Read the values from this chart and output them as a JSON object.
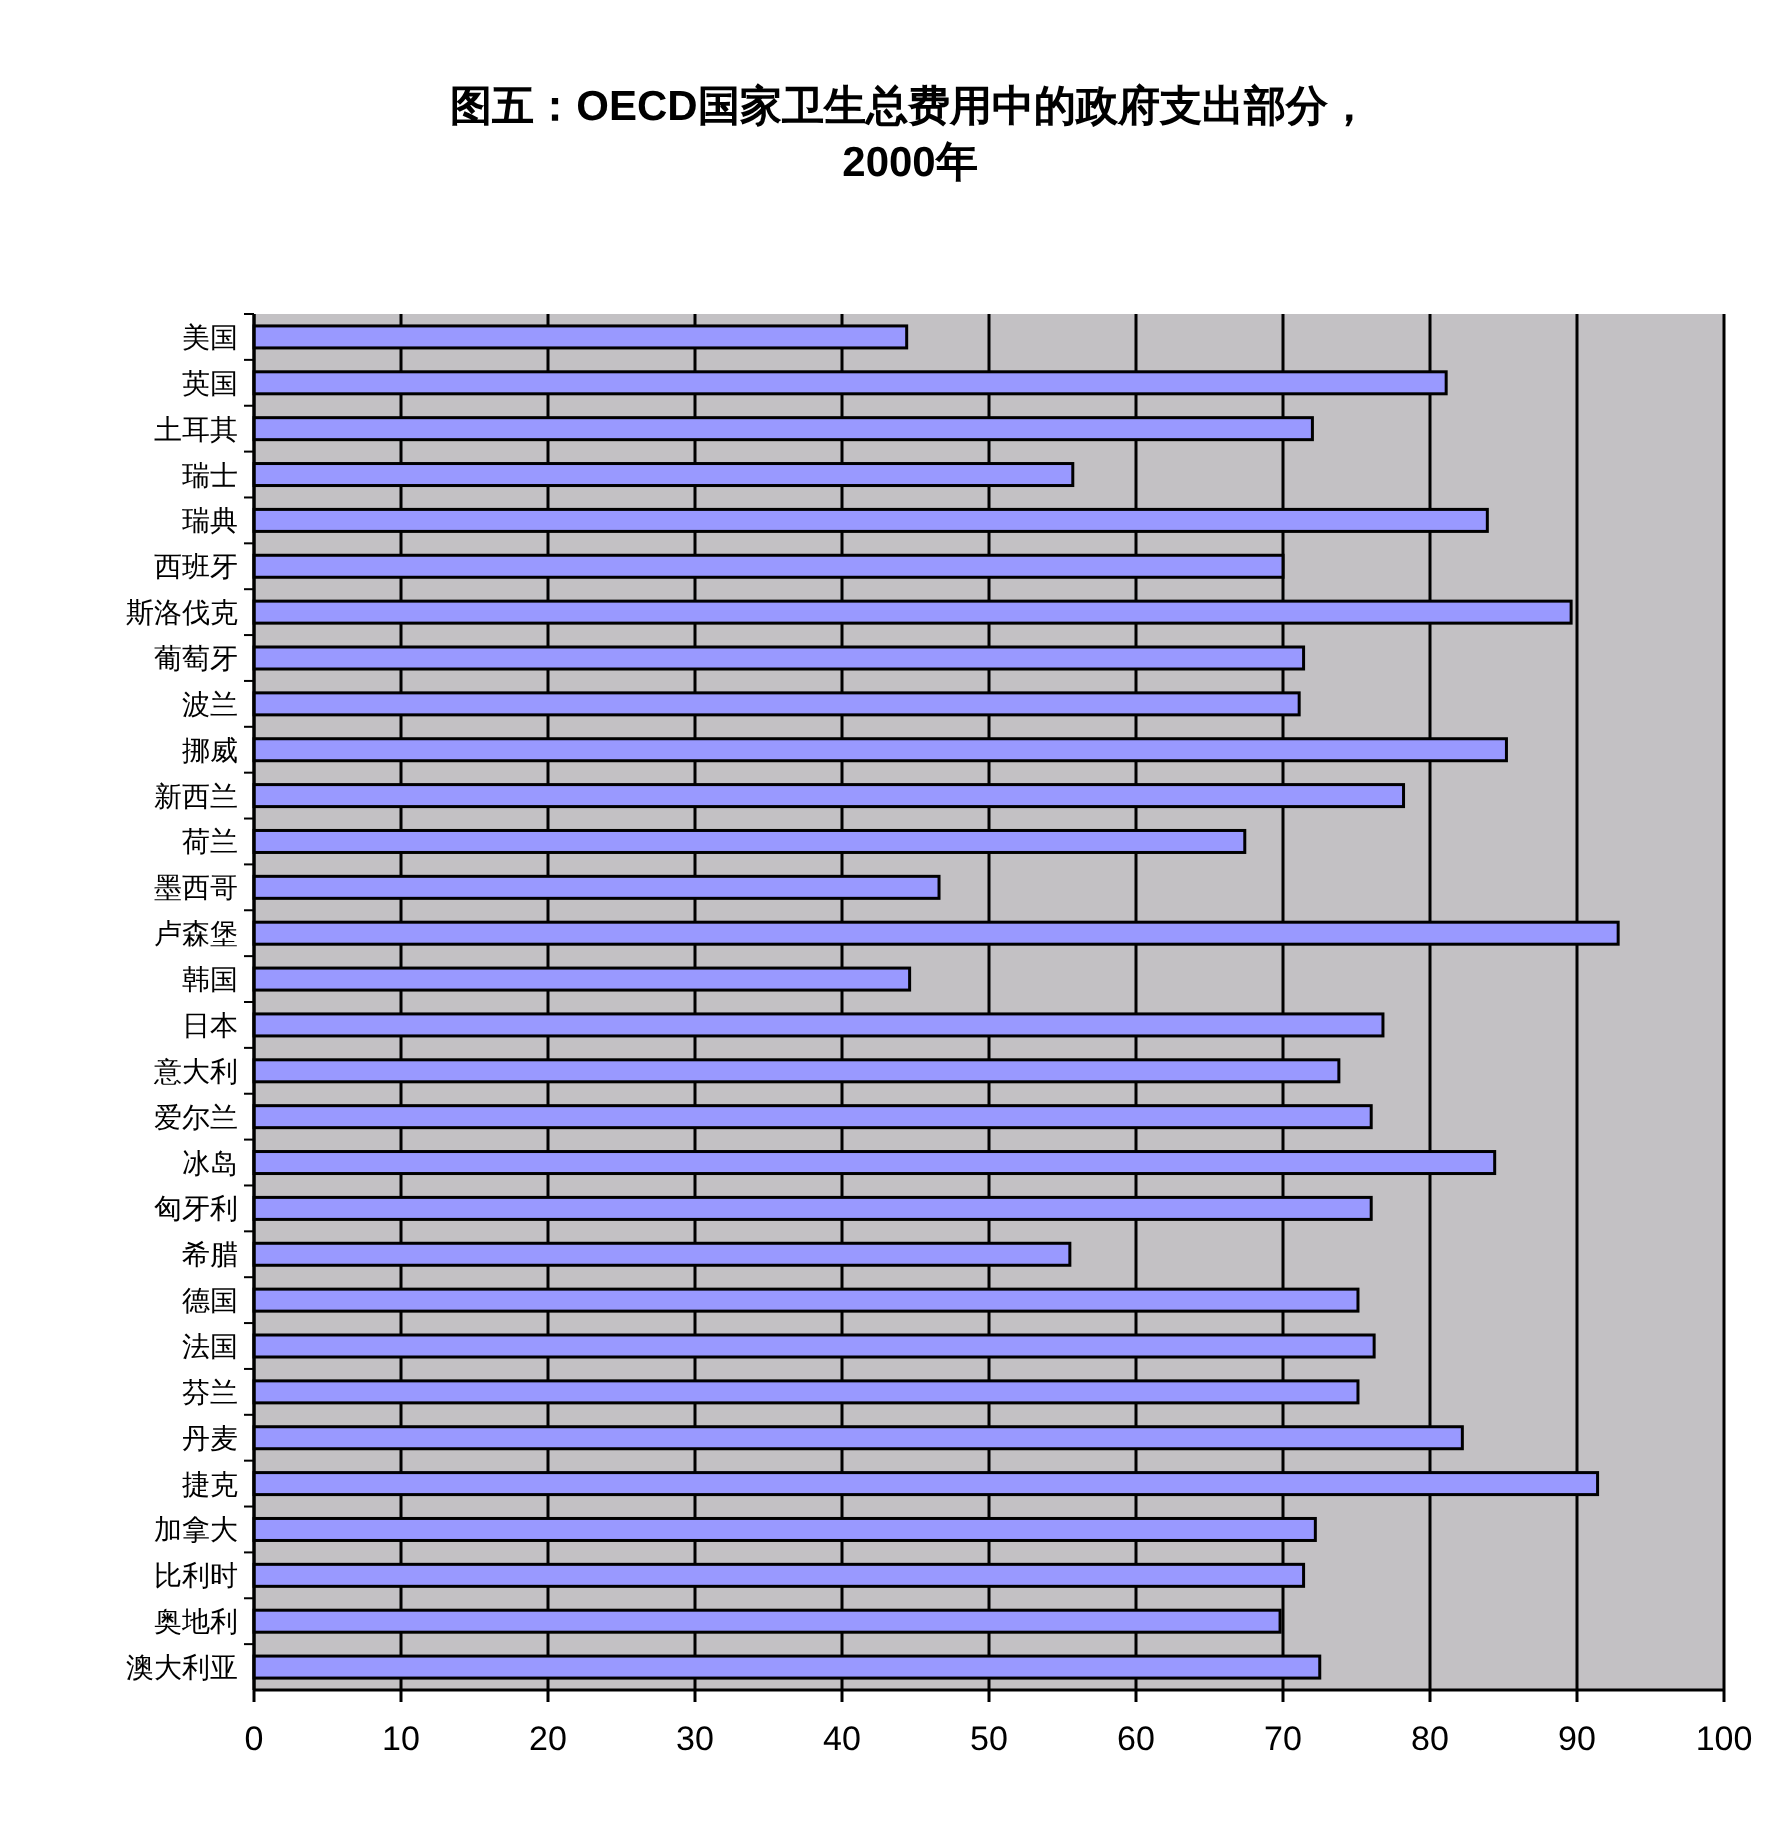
{
  "chart_data": {
    "type": "bar",
    "orientation": "horizontal",
    "title": "图五：OECD国家卫生总费用中的政府支出部分，2000年",
    "categories": [
      "美国",
      "英国",
      "土耳其",
      "瑞士",
      "瑞典",
      "西班牙",
      "斯洛伐克",
      "葡萄牙",
      "波兰",
      "挪威",
      "新西兰",
      "荷兰",
      "墨西哥",
      "卢森堡",
      "韩国",
      "日本",
      "意大利",
      "爱尔兰",
      "冰岛",
      "匈牙利",
      "希腊",
      "德国",
      "法国",
      "芬兰",
      "丹麦",
      "捷克",
      "加拿大",
      "比利时",
      "奥地利",
      "澳大利亚"
    ],
    "values": [
      44.4,
      81.1,
      72.0,
      55.7,
      83.9,
      70.0,
      89.6,
      71.4,
      71.1,
      85.2,
      78.2,
      67.4,
      46.6,
      92.8,
      44.6,
      76.8,
      73.8,
      76.0,
      84.4,
      76.0,
      55.5,
      75.1,
      76.2,
      75.1,
      82.2,
      91.4,
      72.2,
      71.4,
      69.8,
      72.5
    ],
    "color": "#9999ff",
    "xlim": [
      0,
      100
    ],
    "xticks": [
      0,
      10,
      20,
      30,
      40,
      50,
      60,
      70,
      80,
      90,
      100
    ],
    "grid": "x"
  }
}
